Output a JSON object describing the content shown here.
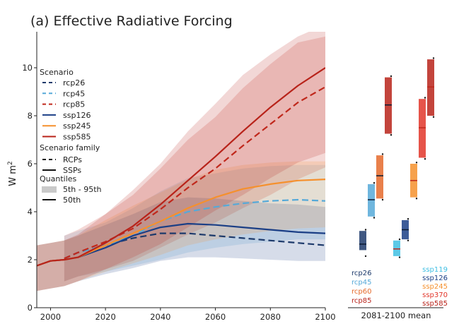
{
  "chart_data": {
    "type": "line",
    "title": "(a) Effective Radiative Forcing",
    "ylabel": "W m",
    "ylabel_sup": "2",
    "xlim": [
      1995,
      2100
    ],
    "ylim": [
      0,
      11.5
    ],
    "xticks": [
      2000,
      2020,
      2040,
      2060,
      2080,
      2100
    ],
    "yticks": [
      0,
      2,
      4,
      6,
      8,
      10
    ],
    "legend": {
      "scenario_title": "Scenario",
      "family_title": "Scenario family",
      "family_items": [
        "RCPs",
        "SSPs"
      ],
      "quantiles_title": "Quantiles",
      "quantile_items": [
        "5th - 95th",
        "50th"
      ]
    },
    "series": [
      {
        "name": "rcp26",
        "family": "RCP",
        "color": "#1d3a6b",
        "x": [
          2005,
          2010,
          2020,
          2030,
          2040,
          2050,
          2060,
          2070,
          2080,
          2090,
          2100
        ],
        "median": [
          2.05,
          2.3,
          2.6,
          2.9,
          3.1,
          3.1,
          3.0,
          2.9,
          2.8,
          2.7,
          2.6
        ]
      },
      {
        "name": "rcp45",
        "family": "RCP",
        "color": "#56a9d8",
        "x": [
          2005,
          2010,
          2020,
          2030,
          2040,
          2050,
          2060,
          2070,
          2080,
          2090,
          2100
        ],
        "median": [
          2.05,
          2.3,
          2.6,
          3.0,
          3.6,
          4.0,
          4.2,
          4.35,
          4.45,
          4.5,
          4.45
        ],
        "p5": [
          1.1,
          1.3,
          1.5,
          1.75,
          2.0,
          2.3,
          2.5,
          2.65,
          2.75,
          2.85,
          2.85
        ],
        "p95": [
          3.0,
          3.2,
          3.55,
          4.15,
          4.85,
          5.4,
          5.6,
          5.8,
          5.9,
          5.95,
          5.95
        ]
      },
      {
        "name": "rcp85",
        "family": "RCP",
        "color": "#c0281c",
        "x": [
          2005,
          2010,
          2020,
          2030,
          2040,
          2050,
          2060,
          2070,
          2080,
          2090,
          2100
        ],
        "median": [
          2.05,
          2.3,
          2.75,
          3.3,
          4.1,
          5.0,
          5.8,
          6.75,
          7.65,
          8.55,
          9.2
        ],
        "p5": [
          1.1,
          1.3,
          1.6,
          1.95,
          2.5,
          3.05,
          3.55,
          4.15,
          4.7,
          5.35,
          5.85
        ],
        "p95": [
          3.0,
          3.25,
          3.9,
          4.7,
          5.8,
          7.0,
          7.95,
          9.15,
          10.15,
          11.05,
          11.3
        ]
      },
      {
        "name": "ssp126",
        "family": "SSP",
        "color": "#1b3f86",
        "x": [
          1995,
          2000,
          2005,
          2010,
          2020,
          2030,
          2040,
          2050,
          2060,
          2070,
          2080,
          2090,
          2100
        ],
        "median": [
          1.75,
          1.95,
          2.0,
          2.1,
          2.5,
          3.0,
          3.35,
          3.5,
          3.45,
          3.35,
          3.25,
          3.15,
          3.1
        ],
        "p5": [
          0.7,
          0.8,
          0.9,
          1.1,
          1.4,
          1.65,
          1.95,
          2.1,
          2.1,
          2.05,
          2.0,
          1.95,
          1.95
        ],
        "p95": [
          2.6,
          2.7,
          2.8,
          3.0,
          3.45,
          3.9,
          4.4,
          4.6,
          4.55,
          4.45,
          4.35,
          4.3,
          4.2
        ]
      },
      {
        "name": "ssp245",
        "family": "SSP",
        "color": "#f5902d",
        "x": [
          1995,
          2000,
          2005,
          2010,
          2020,
          2030,
          2040,
          2050,
          2060,
          2070,
          2080,
          2090,
          2100
        ],
        "median": [
          1.75,
          1.95,
          2.0,
          2.1,
          2.6,
          3.1,
          3.6,
          4.15,
          4.6,
          4.95,
          5.15,
          5.3,
          5.35
        ],
        "p5": [
          0.7,
          0.8,
          0.9,
          1.1,
          1.5,
          1.85,
          2.2,
          2.6,
          2.85,
          3.05,
          3.2,
          3.3,
          3.35
        ],
        "p95": [
          2.6,
          2.7,
          2.8,
          3.0,
          3.65,
          4.25,
          4.8,
          5.35,
          5.75,
          5.95,
          6.05,
          6.1,
          6.1
        ]
      },
      {
        "name": "ssp585",
        "family": "SSP",
        "color": "#b8231a",
        "x": [
          1995,
          2000,
          2005,
          2010,
          2020,
          2030,
          2040,
          2050,
          2060,
          2070,
          2080,
          2090,
          2100
        ],
        "median": [
          1.75,
          1.95,
          2.0,
          2.1,
          2.7,
          3.4,
          4.3,
          5.3,
          6.3,
          7.35,
          8.35,
          9.25,
          10.0
        ],
        "p5": [
          0.7,
          0.8,
          0.9,
          1.1,
          1.6,
          2.1,
          2.65,
          3.35,
          4.05,
          4.7,
          5.4,
          6.05,
          6.45
        ],
        "p95": [
          2.6,
          2.7,
          2.8,
          3.05,
          3.9,
          4.9,
          6.0,
          7.35,
          8.5,
          9.7,
          10.55,
          11.3,
          11.8
        ]
      }
    ],
    "bar_panel": {
      "xlabel": "2081-2100 mean",
      "left_labels": [
        {
          "text": "rcp26",
          "color": "#1d3a6b"
        },
        {
          "text": "rcp45",
          "color": "#56a9d8"
        },
        {
          "text": "rcp60",
          "color": "#e56a2b"
        },
        {
          "text": "rcp85",
          "color": "#b8231a"
        }
      ],
      "right_labels": [
        {
          "text": "ssp119",
          "color": "#3fbfe3"
        },
        {
          "text": "ssp126",
          "color": "#1b3f86"
        },
        {
          "text": "ssp245",
          "color": "#f5902d"
        },
        {
          "text": "ssp370",
          "color": "#e2362a"
        },
        {
          "text": "ssp585",
          "color": "#b8231a"
        }
      ],
      "boxes": [
        {
          "name": "rcp26",
          "family": "RCP",
          "color": "#1d3a6b",
          "low": 2.15,
          "q1": 2.4,
          "median": 2.65,
          "q3": 3.2,
          "high": 3.25
        },
        {
          "name": "rcp45",
          "family": "RCP",
          "color": "#56a9d8",
          "low": 3.75,
          "q1": 3.8,
          "median": 4.5,
          "q3": 5.15,
          "high": 5.2
        },
        {
          "name": "rcp60",
          "family": "RCP",
          "color": "#e56a2b",
          "low": 4.5,
          "q1": 4.55,
          "median": 5.5,
          "q3": 6.35,
          "high": 6.4
        },
        {
          "name": "rcp85",
          "family": "RCP",
          "color": "#b8231a",
          "low": 7.2,
          "q1": 7.25,
          "median": 8.45,
          "q3": 9.6,
          "high": 9.65
        },
        {
          "name": "ssp119",
          "family": "SSP",
          "color": "#3fbfe3",
          "low": 2.1,
          "q1": 2.15,
          "median": 2.45,
          "q3": 2.8,
          "high": 2.85
        },
        {
          "name": "ssp126",
          "family": "SSP",
          "color": "#1b3f86",
          "low": 2.8,
          "q1": 2.85,
          "median": 3.25,
          "q3": 3.65,
          "high": 3.7
        },
        {
          "name": "ssp245",
          "family": "SSP",
          "color": "#f5902d",
          "low": 4.55,
          "q1": 4.6,
          "median": 5.3,
          "q3": 6.0,
          "high": 6.05
        },
        {
          "name": "ssp370",
          "family": "SSP",
          "color": "#e2362a",
          "low": 6.2,
          "q1": 6.25,
          "median": 7.5,
          "q3": 8.7,
          "high": 8.75
        },
        {
          "name": "ssp585",
          "family": "SSP",
          "color": "#b8231a",
          "low": 7.95,
          "q1": 8.0,
          "median": 9.2,
          "q3": 10.35,
          "high": 10.4
        }
      ]
    }
  }
}
